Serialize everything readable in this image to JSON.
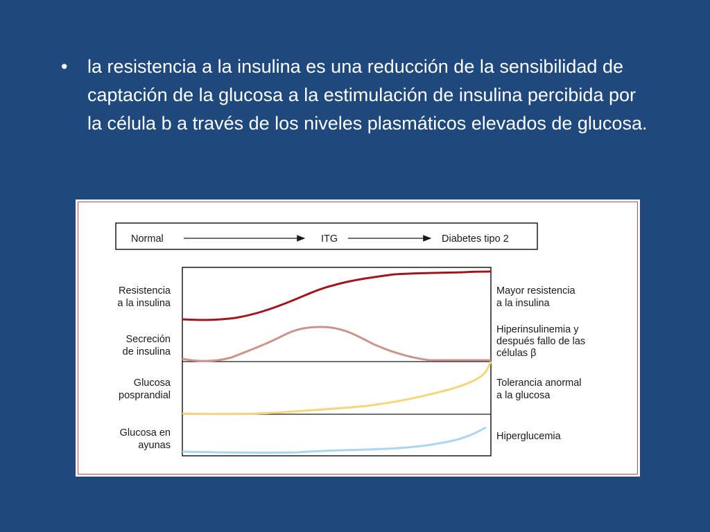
{
  "slide": {
    "bullet_symbol": "•",
    "bullet_text": "la resistencia a la insulina es una reducción de la sensibilidad de captación de la glucosa a la estimulación de insulina percibida por la célula b a través de los niveles plasmáticos elevados de glucosa."
  },
  "figure": {
    "stages": [
      "Normal",
      "ITG",
      "Diabetes tipo 2"
    ],
    "rows": [
      {
        "left_label": [
          "Resistencia",
          "a la insulina"
        ],
        "right_label": [
          "Mayor resistencia",
          "a la insulina"
        ],
        "color": "#a3151e"
      },
      {
        "left_label": [
          "Secreción",
          "de insulina"
        ],
        "right_label": [
          "Hiperinsulinemia y",
          "después fallo de las",
          "células β"
        ],
        "color": "#c9958a"
      },
      {
        "left_label": [
          "Glucosa",
          "posprandial"
        ],
        "right_label": [
          "Tolerancia anormal",
          "a la glucosa"
        ],
        "color": "#f7d57a"
      },
      {
        "left_label": [
          "Glucosa en",
          "ayunas"
        ],
        "right_label": [
          "Hiperglucemia"
        ],
        "color": "#a9d7ef"
      }
    ]
  }
}
